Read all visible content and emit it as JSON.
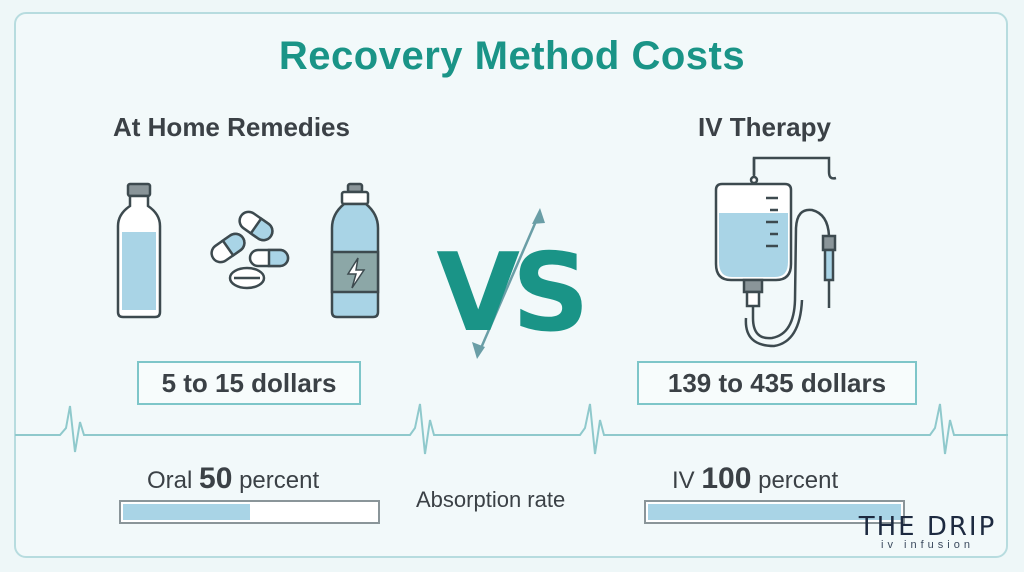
{
  "title": "Recovery Method Costs",
  "left": {
    "heading": "At Home Remedies",
    "price": "5 to 15 dollars",
    "absorption_prefix": "Oral",
    "absorption_value": "50",
    "absorption_suffix": "percent",
    "absorption_fraction": 0.5
  },
  "right": {
    "heading": "IV Therapy",
    "price": "139 to 435 dollars",
    "absorption_prefix": "IV",
    "absorption_value": "100",
    "absorption_suffix": "percent",
    "absorption_fraction": 1.0
  },
  "vs_text": "VS",
  "absorption_label": "Absorption rate",
  "logo": {
    "main": "THE DRIP",
    "sub": "iv infusion"
  },
  "colors": {
    "teal": "#1a9487",
    "liquid": "#a9d4e6",
    "outline": "#3d4a4f",
    "pulse": "#8fc9cc"
  },
  "icons": [
    "water-bottle-icon",
    "pills-icon",
    "sports-drink-icon",
    "iv-bag-icon"
  ]
}
